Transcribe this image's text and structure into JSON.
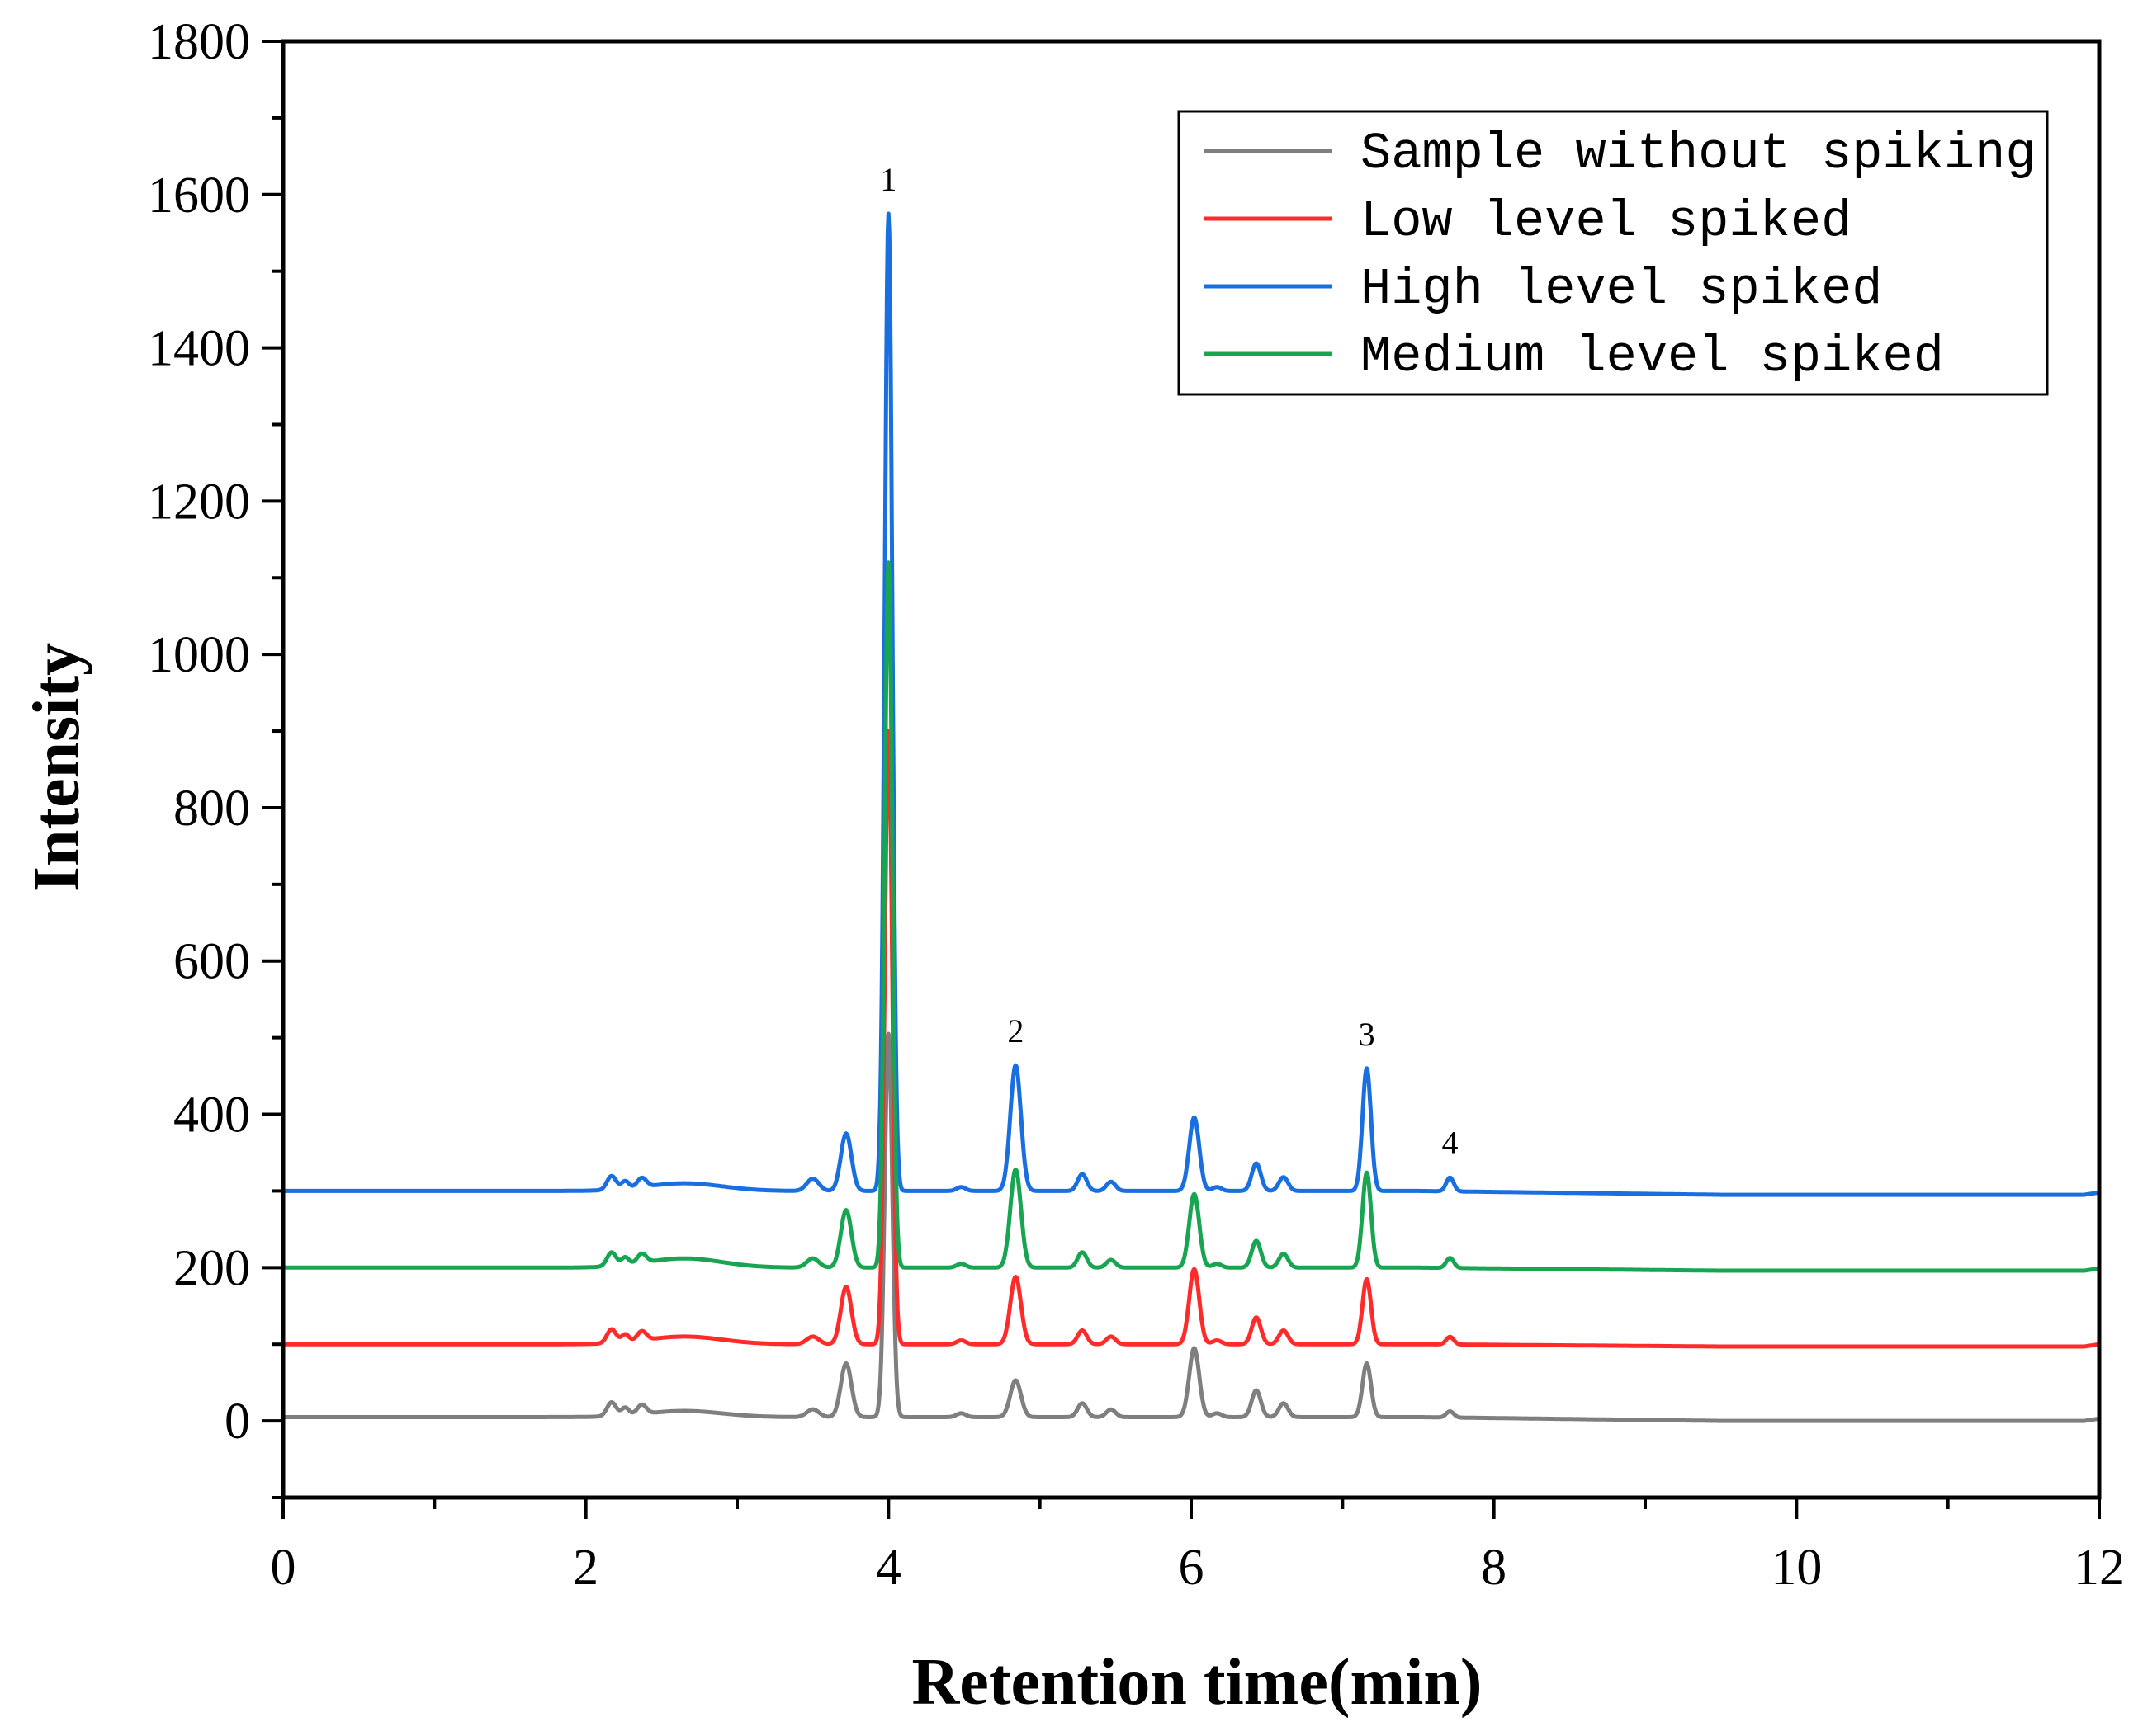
{
  "chart_data": {
    "type": "line",
    "title": "",
    "xlabel": "Retention time(min)",
    "ylabel": "Intensity",
    "xlim": [
      0,
      12
    ],
    "ylim": [
      -100,
      1800
    ],
    "xticks": [
      0,
      2,
      4,
      6,
      8,
      10,
      12
    ],
    "yticks": [
      0,
      200,
      400,
      600,
      800,
      1000,
      1200,
      1400,
      1600,
      1800
    ],
    "grid": false,
    "legend_position": "top-right",
    "peaks": [
      {
        "label": "1",
        "x": 4.0
      },
      {
        "label": "2",
        "x": 4.84
      },
      {
        "label": "3",
        "x": 7.16
      },
      {
        "label": "4",
        "x": 7.71
      }
    ],
    "series": [
      {
        "name": "Sample without spiking",
        "color": "#7f7f7f",
        "baseline": 5,
        "end_baseline": 0,
        "peaks": [
          [
            2.17,
            18,
            0.03
          ],
          [
            2.26,
            10,
            0.025
          ],
          [
            2.37,
            12,
            0.03
          ],
          [
            2.65,
            8,
            0.25
          ],
          [
            3.5,
            10,
            0.04
          ],
          [
            3.72,
            70,
            0.035
          ],
          [
            4.0,
            500,
            0.025
          ],
          [
            4.48,
            5,
            0.03
          ],
          [
            4.84,
            48,
            0.035
          ],
          [
            5.28,
            18,
            0.03
          ],
          [
            5.47,
            10,
            0.03
          ],
          [
            6.02,
            90,
            0.033
          ],
          [
            6.17,
            5,
            0.03
          ],
          [
            6.43,
            35,
            0.03
          ],
          [
            6.61,
            18,
            0.03
          ],
          [
            7.16,
            70,
            0.028
          ],
          [
            7.71,
            8,
            0.025
          ]
        ]
      },
      {
        "name": "Low level spiked",
        "color": "#ff2a2a",
        "baseline": 100,
        "end_baseline": 97,
        "peaks": [
          [
            2.17,
            18,
            0.03
          ],
          [
            2.26,
            10,
            0.025
          ],
          [
            2.37,
            12,
            0.03
          ],
          [
            2.65,
            10,
            0.25
          ],
          [
            3.5,
            10,
            0.04
          ],
          [
            3.72,
            75,
            0.035
          ],
          [
            4.0,
            800,
            0.025
          ],
          [
            4.48,
            5,
            0.03
          ],
          [
            4.84,
            88,
            0.035
          ],
          [
            5.28,
            18,
            0.03
          ],
          [
            5.47,
            10,
            0.03
          ],
          [
            6.02,
            98,
            0.033
          ],
          [
            6.17,
            5,
            0.03
          ],
          [
            6.43,
            35,
            0.03
          ],
          [
            6.61,
            18,
            0.03
          ],
          [
            7.16,
            85,
            0.028
          ],
          [
            7.71,
            10,
            0.025
          ]
        ]
      },
      {
        "name": "High level spiked",
        "color": "#1a6fe0",
        "baseline": 300,
        "end_baseline": 295,
        "peaks": [
          [
            2.17,
            18,
            0.03
          ],
          [
            2.26,
            10,
            0.025
          ],
          [
            2.37,
            12,
            0.03
          ],
          [
            2.65,
            10,
            0.25
          ],
          [
            3.5,
            16,
            0.04
          ],
          [
            3.72,
            75,
            0.035
          ],
          [
            4.0,
            1275,
            0.025
          ],
          [
            4.48,
            5,
            0.03
          ],
          [
            4.84,
            164,
            0.035
          ],
          [
            5.28,
            22,
            0.03
          ],
          [
            5.47,
            12,
            0.03
          ],
          [
            6.02,
            96,
            0.033
          ],
          [
            6.17,
            5,
            0.03
          ],
          [
            6.43,
            36,
            0.03
          ],
          [
            6.61,
            18,
            0.03
          ],
          [
            7.16,
            160,
            0.028
          ],
          [
            7.71,
            18,
            0.025
          ]
        ]
      },
      {
        "name": "Medium level spiked",
        "color": "#17a552",
        "baseline": 200,
        "end_baseline": 196,
        "peaks": [
          [
            2.17,
            18,
            0.03
          ],
          [
            2.26,
            10,
            0.025
          ],
          [
            2.37,
            12,
            0.03
          ],
          [
            2.65,
            12,
            0.25
          ],
          [
            3.5,
            12,
            0.04
          ],
          [
            3.72,
            75,
            0.035
          ],
          [
            4.0,
            920,
            0.025
          ],
          [
            4.48,
            5,
            0.03
          ],
          [
            4.84,
            128,
            0.035
          ],
          [
            5.28,
            20,
            0.03
          ],
          [
            5.47,
            10,
            0.03
          ],
          [
            6.02,
            96,
            0.033
          ],
          [
            6.17,
            5,
            0.03
          ],
          [
            6.43,
            35,
            0.03
          ],
          [
            6.61,
            18,
            0.03
          ],
          [
            7.16,
            124,
            0.028
          ],
          [
            7.71,
            13,
            0.025
          ]
        ]
      }
    ]
  }
}
